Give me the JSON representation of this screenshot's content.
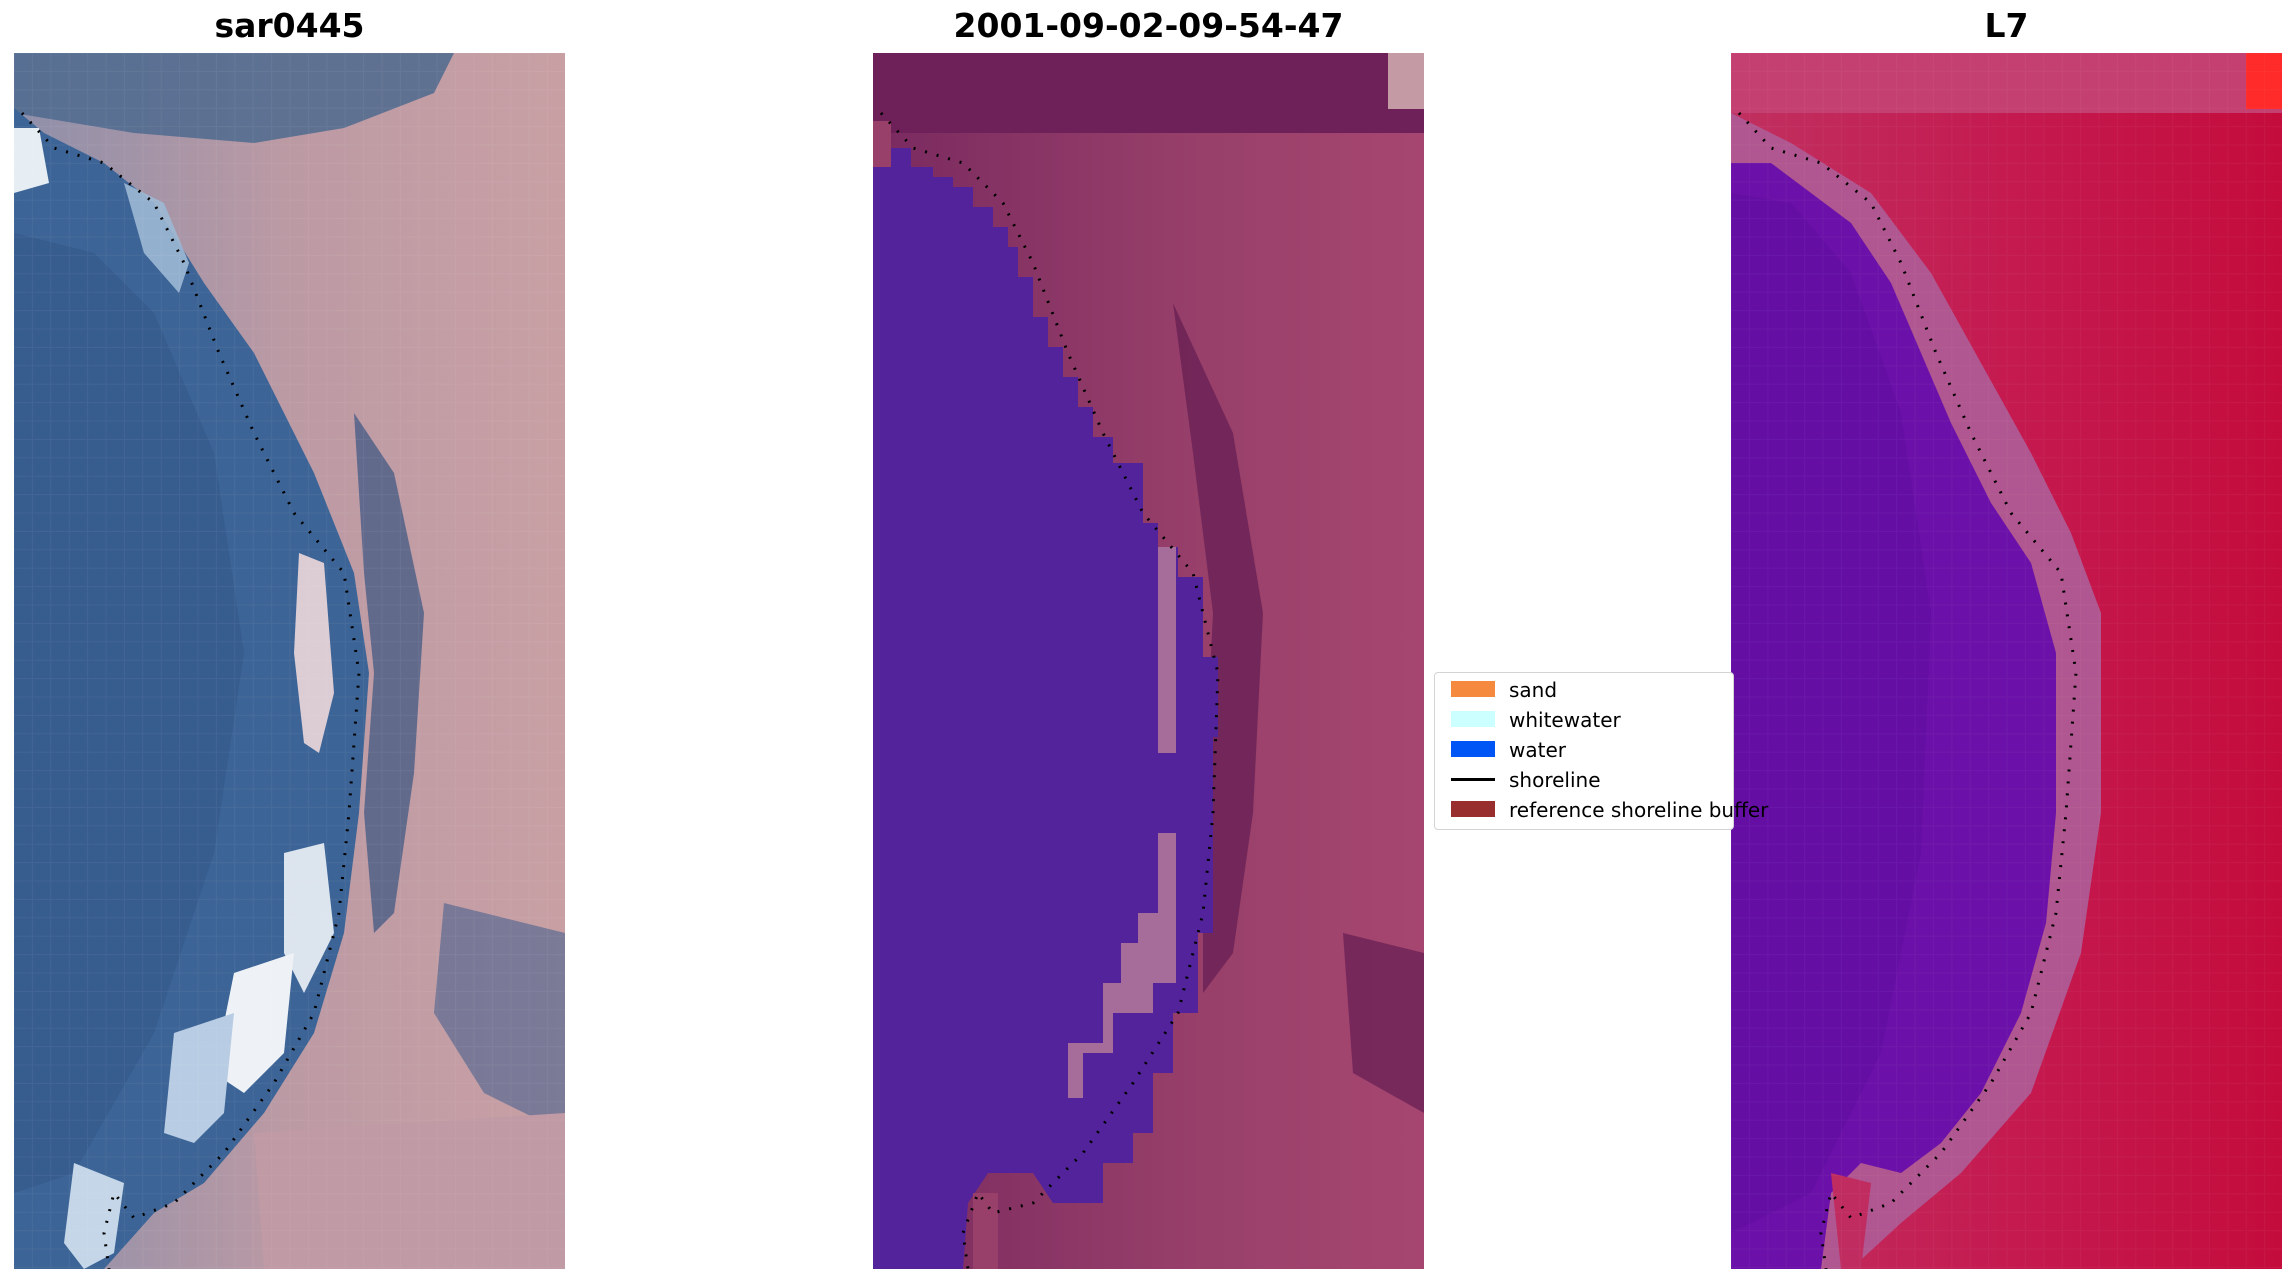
{
  "panels": [
    {
      "title": "sar0445"
    },
    {
      "title": "2001-09-02-09-54-47"
    },
    {
      "title": "L7"
    }
  ],
  "legend": {
    "items": [
      {
        "label": "sand",
        "color": "#F58A3E",
        "kind": "patch"
      },
      {
        "label": "whitewater",
        "color": "#CCFFFF",
        "kind": "patch"
      },
      {
        "label": "water",
        "color": "#0055F5",
        "kind": "patch"
      },
      {
        "label": "shoreline",
        "color": "#000000",
        "kind": "line"
      },
      {
        "label": "reference shoreline buffer",
        "color": "#992E2E",
        "kind": "patch"
      }
    ]
  },
  "colors": {
    "rgb_water": "#3C6496",
    "rgb_land": "#C49AA0",
    "class_water": "#52239A",
    "class_land": "#98406A",
    "mndwi_water": "#6B10A8",
    "mndwi_land": "#C41144"
  }
}
